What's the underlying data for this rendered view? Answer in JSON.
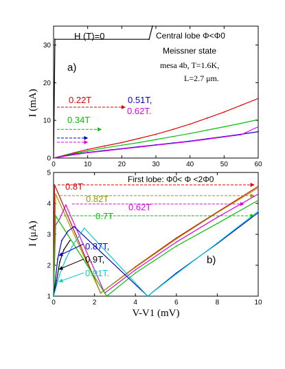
{
  "chart_data": [
    {
      "panel_label": "a)",
      "type": "line",
      "xlim": [
        0,
        60
      ],
      "ylim": [
        0,
        35
      ],
      "x_ticks": [
        0,
        10,
        20,
        30,
        40,
        50,
        60
      ],
      "y_ticks": [
        0,
        10,
        20,
        30
      ],
      "ylabel": "I (mA)",
      "header": "H (T)=0",
      "annotations": [
        "Central lobe Φ<Φ0",
        "Meissner state",
        "mesa 4b, T=1.6K,",
        "L=2.7 μm."
      ],
      "series": [
        {
          "name": "H (T)=0",
          "color": "#000000",
          "x": [
            0,
            0.4,
            28,
            29
          ],
          "y": [
            0,
            31.5,
            31.5,
            35
          ]
        },
        {
          "name": "0.22T",
          "color": "#e00000",
          "x": [
            0,
            6,
            10,
            15,
            20,
            25,
            30,
            35,
            40,
            45,
            50,
            55,
            60
          ],
          "y": [
            0,
            1.4,
            2.3,
            3.2,
            4.1,
            5.2,
            6.3,
            7.6,
            9.0,
            10.6,
            12.2,
            14.0,
            15.8
          ]
        },
        {
          "name": "0.34T",
          "color": "#00c000",
          "x": [
            0,
            6,
            10,
            15,
            20,
            25,
            30,
            35,
            40,
            45,
            50,
            55,
            60
          ],
          "y": [
            0,
            1.2,
            1.9,
            2.7,
            3.4,
            4.1,
            4.9,
            5.7,
            6.5,
            7.4,
            8.3,
            9.2,
            10.2
          ]
        },
        {
          "name": "0.51T",
          "color": "#0000cc",
          "x": [
            0,
            6,
            10,
            15,
            20,
            25,
            30,
            35,
            40,
            45,
            50,
            55,
            60
          ],
          "y": [
            0,
            1.0,
            1.5,
            2.0,
            2.5,
            3.0,
            3.5,
            4.0,
            4.5,
            5.1,
            5.7,
            6.3,
            7.0
          ]
        },
        {
          "name": "0.62T",
          "color": "#e000e0",
          "x": [
            0,
            6,
            10,
            15,
            20,
            25,
            30,
            35,
            40,
            45,
            50,
            55,
            60
          ],
          "y": [
            0,
            0.9,
            1.4,
            1.9,
            2.4,
            2.9,
            3.4,
            3.9,
            4.4,
            5.0,
            5.6,
            6.2,
            8.3
          ]
        }
      ],
      "labels": [
        {
          "text": "0.22T",
          "color": "#e00000",
          "arrow": {
            "x1": 1,
            "y1": 13.5,
            "x2": 21,
            "y2": 13.5
          }
        },
        {
          "text": "0.34T",
          "color": "#00c000",
          "arrow": {
            "x1": 1,
            "y1": 7.6,
            "x2": 14,
            "y2": 7.6
          }
        },
        {
          "text": "0.51T,",
          "color": "#0000cc",
          "arrow": {
            "x1": 1,
            "y1": 5.3,
            "x2": 10,
            "y2": 5.3
          }
        },
        {
          "text": "0.62T.",
          "color": "#e000e0",
          "arrow": {
            "x1": 1,
            "y1": 4.2,
            "x2": 10,
            "y2": 4.2
          }
        }
      ]
    },
    {
      "panel_label": "b)",
      "type": "line",
      "xlim": [
        0,
        10
      ],
      "ylim": [
        1,
        5
      ],
      "x_ticks": [
        0,
        2,
        4,
        6,
        8,
        10
      ],
      "y_ticks": [
        1,
        2,
        3,
        4,
        5
      ],
      "xlabel": "V-V1 (mV)",
      "ylabel": "I (μA)",
      "header": "First lobe: Φ0< Φ <2Φ0",
      "series": [
        {
          "name": "0.8T",
          "color": "#e00000",
          "x": [
            0,
            0.05,
            2.3,
            4,
            6,
            8,
            10
          ],
          "y": [
            1.0,
            4.6,
            1.1,
            1.95,
            2.88,
            3.72,
            4.55
          ]
        },
        {
          "name": "0.82T",
          "color": "#9a9a00",
          "x": [
            0,
            0.1,
            2.3,
            4,
            6,
            8,
            10
          ],
          "y": [
            1.0,
            4.3,
            1.1,
            1.93,
            2.85,
            3.7,
            4.5
          ]
        },
        {
          "name": "0.62T",
          "color": "#e000e0",
          "x": [
            0,
            0.1,
            0.3,
            0.6,
            2.5,
            4,
            6,
            8,
            10
          ],
          "y": [
            1.0,
            3.3,
            3.5,
            3.95,
            1.1,
            1.85,
            2.75,
            3.55,
            4.3
          ]
        },
        {
          "name": "0.7T",
          "color": "#00c000",
          "x": [
            0,
            0.1,
            2.6,
            4,
            6,
            8,
            10
          ],
          "y": [
            1.0,
            3.6,
            1.0,
            1.75,
            2.62,
            3.35,
            4.1
          ]
        },
        {
          "name": "0.87T,",
          "color": "#0000cc",
          "x": [
            0,
            0.2,
            0.4,
            0.7,
            1.0,
            4.6,
            6,
            8,
            10
          ],
          "y": [
            1.0,
            2.2,
            2.8,
            3.1,
            3.25,
            1.0,
            1.75,
            2.7,
            3.7
          ]
        },
        {
          "name": "0.9T,",
          "color": "#000000",
          "x": [
            0,
            0.15,
            0.3,
            0.5,
            0.8
          ],
          "y": [
            1.0,
            1.5,
            2.1,
            2.5,
            2.8
          ]
        },
        {
          "name": "0.91T.",
          "color": "#00cccc",
          "x": [
            0,
            0.3,
            0.6,
            0.9,
            1.2,
            1.5,
            4.6,
            6,
            8,
            10
          ],
          "y": [
            1.0,
            1.7,
            2.2,
            2.6,
            2.9,
            3.2,
            1.0,
            1.72,
            2.72,
            3.75
          ]
        }
      ],
      "labels": [
        {
          "text": "0.8T",
          "color": "#e00000",
          "arrow": {
            "x1": 0.2,
            "y1": 4.6,
            "x2": 9.8,
            "y2": 4.6
          }
        },
        {
          "text": "0.82T",
          "color": "#9a9a00",
          "arrow": {
            "x1": 0.3,
            "y1": 4.25,
            "x2": 9.8,
            "y2": 4.25
          }
        },
        {
          "text": "0.62T",
          "color": "#e000e0",
          "arrow": {
            "x1": 0.9,
            "y1": 3.98,
            "x2": 9.3,
            "y2": 3.98
          }
        },
        {
          "text": "0.7T",
          "color": "#00c000",
          "arrow": {
            "x1": 0.3,
            "y1": 3.6,
            "x2": 9.8,
            "y2": 3.6
          }
        },
        {
          "text": "0.87T,",
          "color": "#0000cc",
          "arrow": null
        },
        {
          "text": "0.9T,",
          "color": "#000000",
          "arrow": null
        },
        {
          "text": "0.91T.",
          "color": "#00cccc",
          "arrow": null
        }
      ]
    }
  ]
}
